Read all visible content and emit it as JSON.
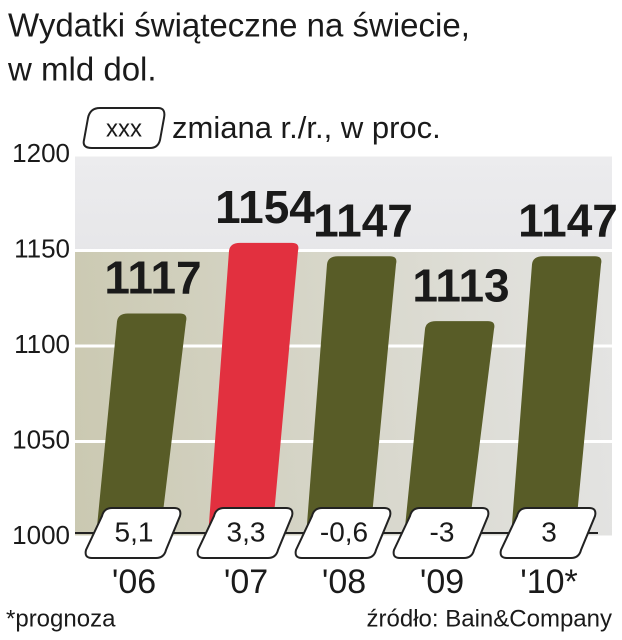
{
  "chart_data": {
    "type": "bar",
    "title": "Wydatki świąteczne na świecie,",
    "subtitle": "w mld dol.",
    "legend_sample": "xxx",
    "legend_text": "zmiana r./r., w proc.",
    "categories": [
      "'06",
      "'07",
      "'08",
      "'09",
      "'10*"
    ],
    "values": [
      1117,
      1154,
      1147,
      1113,
      1147
    ],
    "colors": [
      "#585c27",
      "#e2303f",
      "#585c27",
      "#585c27",
      "#585c27"
    ],
    "change_values": [
      5.1,
      3.3,
      -0.6,
      -3,
      3
    ],
    "change_labels": [
      "5,1",
      "3,3",
      "-0,6",
      "-3",
      "3"
    ],
    "ylim": [
      1000,
      1200
    ],
    "yticks": [
      1000,
      1050,
      1100,
      1150,
      1200
    ],
    "grid": true,
    "footnote": "*prognoza",
    "source": "źródło: Bain&Company"
  }
}
